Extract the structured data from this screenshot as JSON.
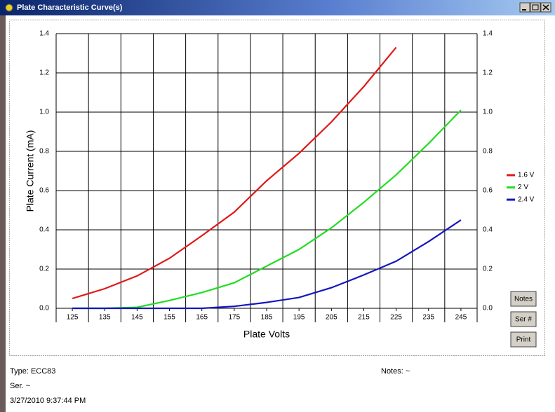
{
  "window": {
    "title": "Plate Characteristic Curve(s)",
    "buttons": [
      "Notes",
      "Ser #",
      "Print"
    ],
    "footer": {
      "type": "Type: ECC83",
      "notes": "Notes: ~",
      "serial": "Ser. ~",
      "timestamp": "3/27/2010  9:37:44 PM"
    }
  },
  "chart_data": {
    "type": "line",
    "y_label": "Plate Current (mA)",
    "x_label": "Plate Volts",
    "x": [
      125,
      135,
      145,
      155,
      165,
      175,
      185,
      195,
      205,
      215,
      225,
      235,
      245
    ],
    "series": [
      {
        "name": "1.6 V",
        "color": "#e01818",
        "values": [
          0.05,
          0.1,
          0.165,
          0.255,
          0.37,
          0.49,
          0.65,
          0.79,
          0.95,
          1.13,
          1.33,
          null,
          null
        ]
      },
      {
        "name": "2 V",
        "color": "#22dd22",
        "values": [
          0,
          0,
          0.005,
          0.04,
          0.08,
          0.13,
          0.215,
          0.3,
          0.41,
          0.54,
          0.68,
          0.84,
          1.01
        ]
      },
      {
        "name": "2.4 V",
        "color": "#1515c0",
        "values": [
          0,
          0,
          0,
          0,
          0,
          0.01,
          0.03,
          0.055,
          0.105,
          0.17,
          0.24,
          0.34,
          0.45
        ]
      }
    ],
    "xlim": [
      120,
      250
    ],
    "xticks": [
      125,
      135,
      145,
      155,
      165,
      175,
      185,
      195,
      205,
      215,
      225,
      235,
      245
    ],
    "ylim": [
      0,
      1.4
    ],
    "yticks": [
      {
        "value": 0,
        "label": "0.0"
      },
      0.2,
      0.4,
      0.6,
      0.8,
      {
        "value": 1,
        "label": "1.0"
      },
      1.2,
      1.4
    ],
    "grid": true,
    "legend": "right"
  }
}
